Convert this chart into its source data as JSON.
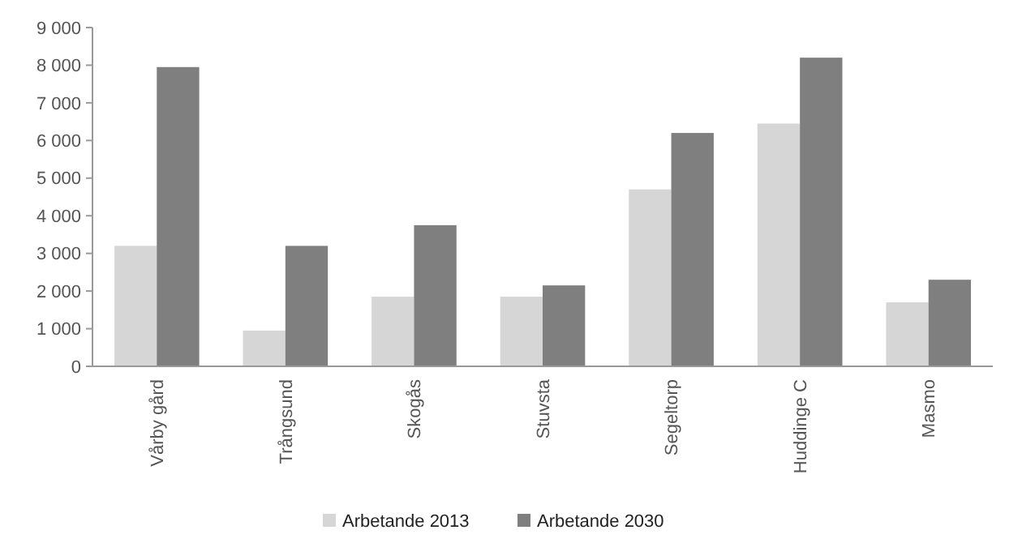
{
  "chart_data": {
    "type": "bar",
    "categories": [
      "Vårby gård",
      "Trångsund",
      "Skogås",
      "Stuvsta",
      "Segeltorp",
      "Huddinge C",
      "Masmo"
    ],
    "series": [
      {
        "name": "Arbetande 2013",
        "color": "#d6d6d6",
        "values": [
          3200,
          950,
          1850,
          1850,
          4700,
          6450,
          1700
        ]
      },
      {
        "name": "Arbetande 2030",
        "color": "#7f7f7f",
        "values": [
          7950,
          3200,
          3750,
          2150,
          6200,
          8200,
          2300
        ]
      }
    ],
    "ylim": [
      0,
      9000
    ],
    "yticks": [
      {
        "value": 0,
        "label": "0"
      },
      {
        "value": 1000,
        "label": "1 000"
      },
      {
        "value": 2000,
        "label": "2 000"
      },
      {
        "value": 3000,
        "label": "3 000"
      },
      {
        "value": 4000,
        "label": "4 000"
      },
      {
        "value": 5000,
        "label": "5 000"
      },
      {
        "value": 6000,
        "label": "6 000"
      },
      {
        "value": 7000,
        "label": "7 000"
      },
      {
        "value": 8000,
        "label": "8 000"
      },
      {
        "value": 9000,
        "label": "9 000"
      }
    ],
    "legend": "bottom",
    "grid": false
  }
}
